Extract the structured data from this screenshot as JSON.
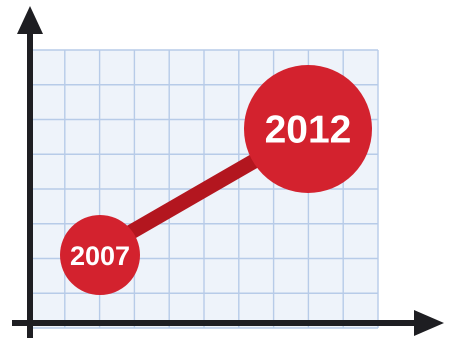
{
  "points": [
    {
      "label": "2007"
    },
    {
      "label": "2012"
    }
  ],
  "colors": {
    "background": "#ffffff",
    "grid_fill": "#eef3fa",
    "grid_line": "#b7cbe8",
    "axis": "#1e1e22",
    "connector": "#b3161f",
    "circle": "#d3222e",
    "label_text": "#ffffff"
  }
}
